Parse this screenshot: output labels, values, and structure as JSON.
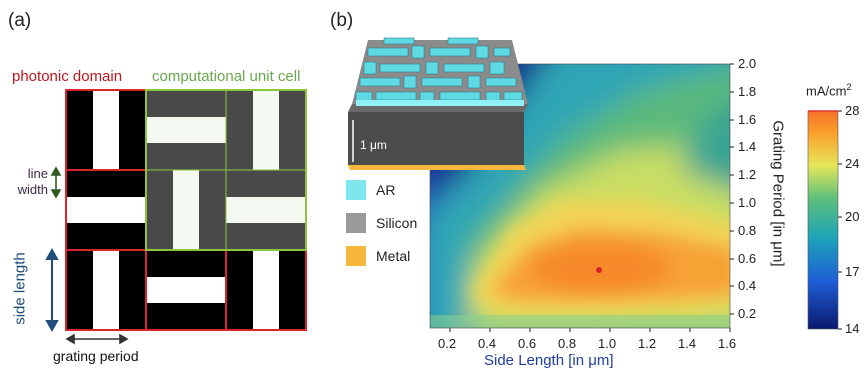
{
  "panel_a": {
    "label": "(a)",
    "photonic_domain": "photonic domain",
    "computational_unit_cell": "computational unit cell",
    "line_width": [
      "line",
      "width"
    ],
    "side_length": "side length",
    "grating_period": "grating period"
  },
  "panel_b": {
    "label": "(b)",
    "scale_bar": "1 μm",
    "legend": [
      {
        "label": "AR",
        "color": "#7fe6ee"
      },
      {
        "label": "Silicon",
        "color": "#9a9a9a"
      },
      {
        "label": "Metal",
        "color": "#f5b83d"
      }
    ],
    "colorbar_unit": "mA/cm",
    "colorbar_unit_sup": "2"
  },
  "chart_data": {
    "type": "heatmap",
    "xlabel": "Side Length [in μm]",
    "ylabel": "Grating Period [in μm]",
    "xlim": [
      0.1,
      1.6
    ],
    "ylim": [
      0.1,
      2.0
    ],
    "x_ticks": [
      "0.2",
      "0.4",
      "0.6",
      "0.8",
      "1.0",
      "1.2",
      "1.4",
      "1.6"
    ],
    "y_ticks": [
      "0.2",
      "0.4",
      "0.6",
      "0.8",
      "1.0",
      "1.2",
      "1.4",
      "1.6",
      "1.8",
      "2.0"
    ],
    "colorbar_ticks": [
      "14",
      "17",
      "20",
      "24",
      "28"
    ],
    "colorbar_range": [
      14,
      28
    ],
    "optimum_marker": {
      "x": 0.94,
      "y": 0.52
    }
  }
}
